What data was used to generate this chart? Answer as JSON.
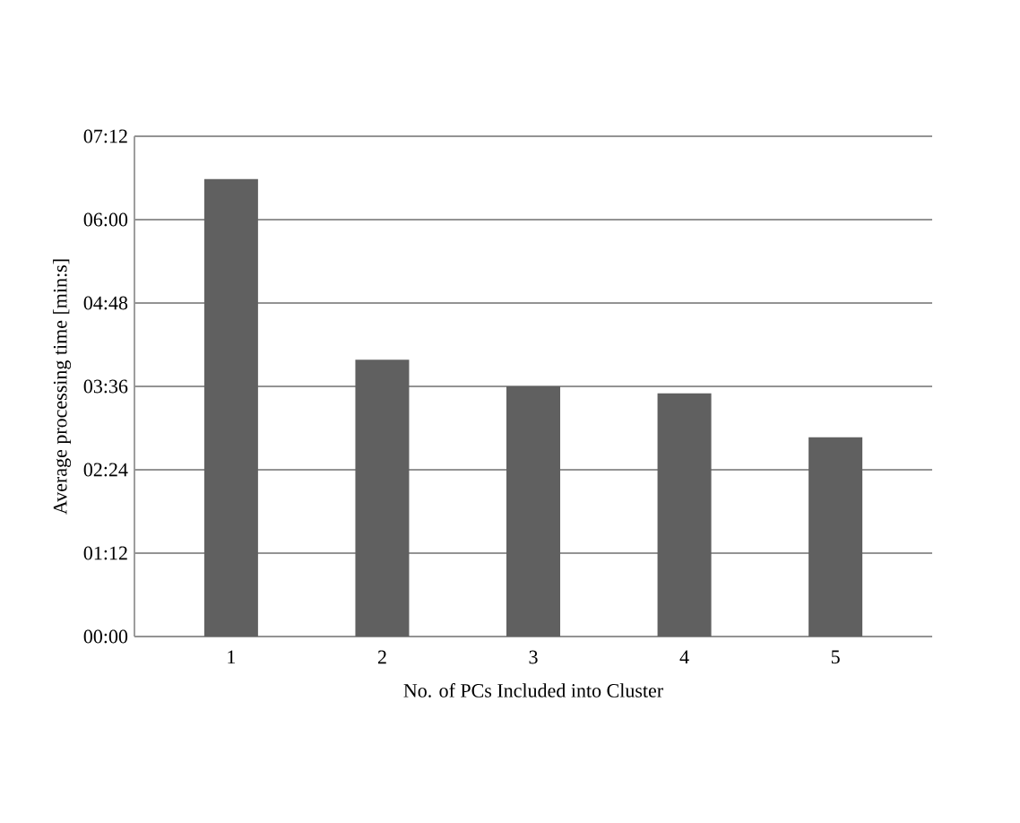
{
  "chart_data": {
    "type": "bar",
    "xlabel": "No. of PCs Included into Cluster",
    "ylabel": "Average processing time [min:s]",
    "categories": [
      "1",
      "2",
      "3",
      "4",
      "5"
    ],
    "values": [
      395,
      239,
      216,
      210,
      172
    ],
    "color": "#606060",
    "ylim": [
      0,
      432
    ],
    "yticks": [
      {
        "value": 0,
        "label": "00:00"
      },
      {
        "value": 72,
        "label": "01:12"
      },
      {
        "value": 144,
        "label": "02:24"
      },
      {
        "value": 216,
        "label": "03:36"
      },
      {
        "value": 288,
        "label": "04:48"
      },
      {
        "value": 360,
        "label": "06:00"
      },
      {
        "value": 432,
        "label": "07:12"
      }
    ],
    "grid": "y"
  }
}
